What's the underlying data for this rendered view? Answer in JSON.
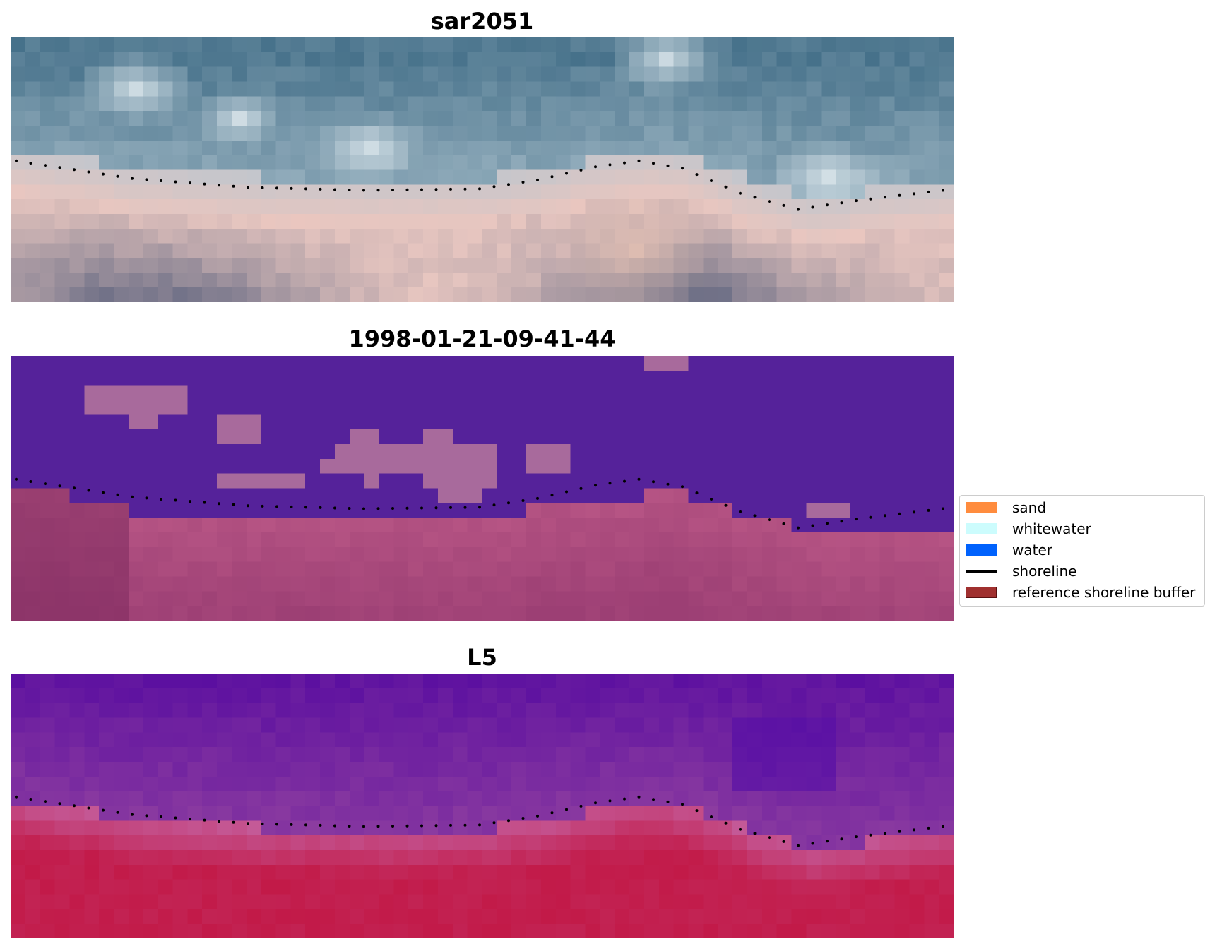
{
  "panels": [
    {
      "title": "sar2051",
      "style": "rgb"
    },
    {
      "title": "1998-01-21-09-41-44",
      "style": "classified"
    },
    {
      "title": "L5",
      "style": "index"
    }
  ],
  "legend": {
    "items": [
      {
        "label": "sand",
        "color": "#ff8c3e"
      },
      {
        "label": "whitewater",
        "color": "#ccfcfd"
      },
      {
        "label": "water",
        "color": "#0062fd"
      },
      {
        "label": "shoreline",
        "color": "#000000"
      },
      {
        "label": "reference shoreline buffer",
        "color": "#a0302f"
      }
    ]
  },
  "colors": {
    "classified_water": "#55229a",
    "classified_other": "#a86a9c",
    "classified_land": "#9c3f74"
  }
}
